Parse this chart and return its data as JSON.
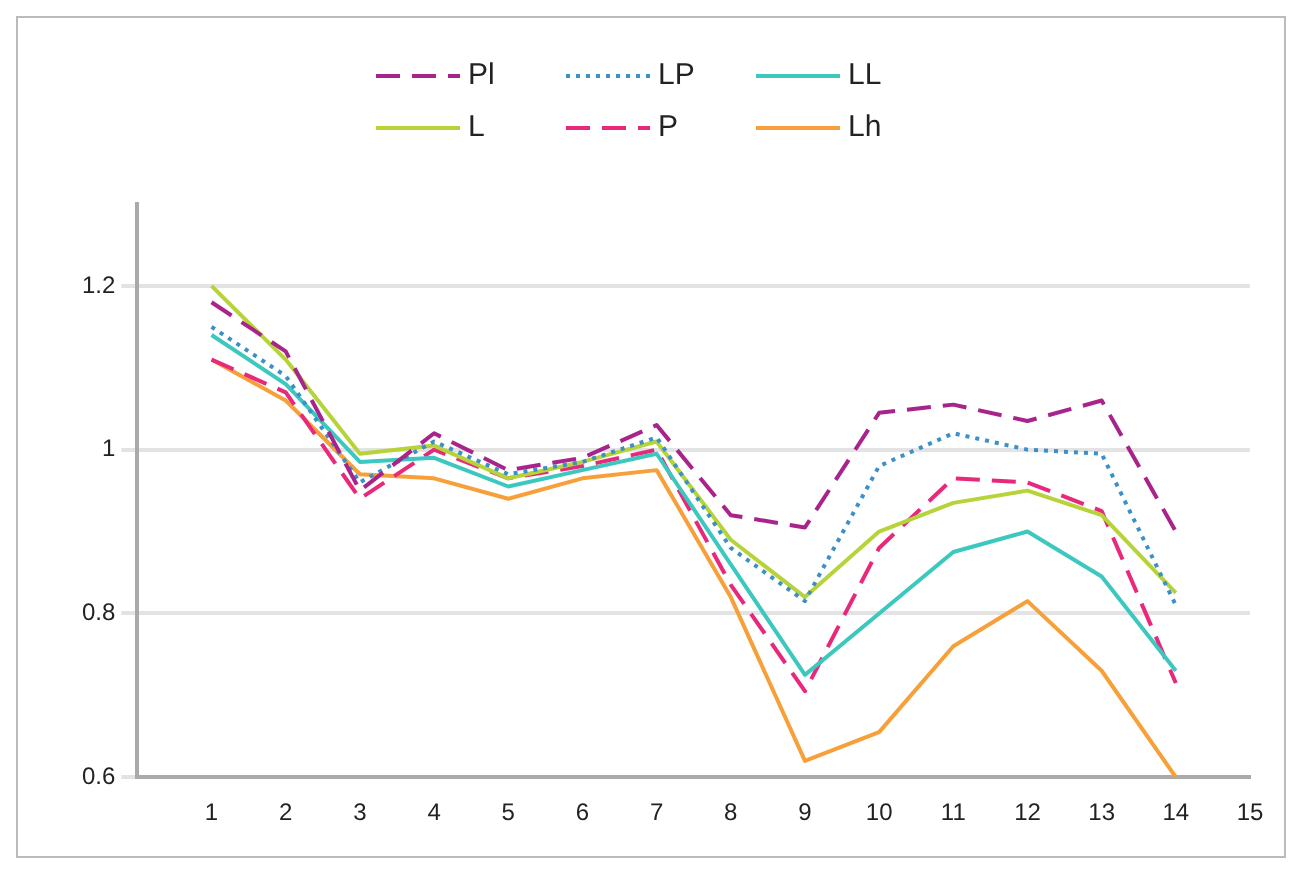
{
  "chart_data": {
    "type": "line",
    "x": [
      1,
      2,
      3,
      4,
      5,
      6,
      7,
      8,
      9,
      10,
      11,
      12,
      13,
      14
    ],
    "series": [
      {
        "name": "Pl",
        "color": "#a8238a",
        "line_style": "dashed",
        "values": [
          1.18,
          1.12,
          0.95,
          1.02,
          0.975,
          0.99,
          1.03,
          0.92,
          0.905,
          1.045,
          1.055,
          1.035,
          1.06,
          0.9
        ]
      },
      {
        "name": "LP",
        "color": "#3d8fc8",
        "line_style": "dotted",
        "values": [
          1.15,
          1.09,
          0.96,
          1.01,
          0.97,
          0.985,
          1.015,
          0.88,
          0.815,
          0.98,
          1.02,
          1.0,
          0.995,
          0.81
        ]
      },
      {
        "name": "LL",
        "color": "#3cc8be",
        "line_style": "solid",
        "values": [
          1.14,
          1.08,
          0.985,
          0.99,
          0.955,
          0.975,
          0.995,
          0.86,
          0.725,
          0.8,
          0.875,
          0.9,
          0.845,
          0.73
        ]
      },
      {
        "name": "L",
        "color": "#b6d43a",
        "line_style": "solid",
        "values": [
          1.2,
          1.11,
          0.995,
          1.005,
          0.965,
          0.985,
          1.01,
          0.89,
          0.82,
          0.9,
          0.935,
          0.95,
          0.92,
          0.825
        ]
      },
      {
        "name": "P",
        "color": "#e8287a",
        "line_style": "dashed",
        "values": [
          1.11,
          1.07,
          0.94,
          1.0,
          0.965,
          0.98,
          1.0,
          0.835,
          0.705,
          0.88,
          0.965,
          0.96,
          0.925,
          0.715
        ]
      },
      {
        "name": "Lh",
        "color": "#f7a03a",
        "line_style": "solid",
        "values": [
          1.11,
          1.06,
          0.97,
          0.965,
          0.94,
          0.965,
          0.975,
          0.82,
          0.62,
          0.655,
          0.76,
          0.815,
          0.73,
          0.6
        ]
      }
    ],
    "xlim": [
      0,
      15
    ],
    "xticks": [
      1,
      2,
      3,
      4,
      5,
      6,
      7,
      8,
      9,
      10,
      11,
      12,
      13,
      14,
      15
    ],
    "ylim": [
      0.6,
      1.3
    ],
    "yticks": [
      0.6,
      0.8,
      1,
      1.2
    ],
    "grid": "y",
    "legend": "top",
    "marker": "none"
  }
}
